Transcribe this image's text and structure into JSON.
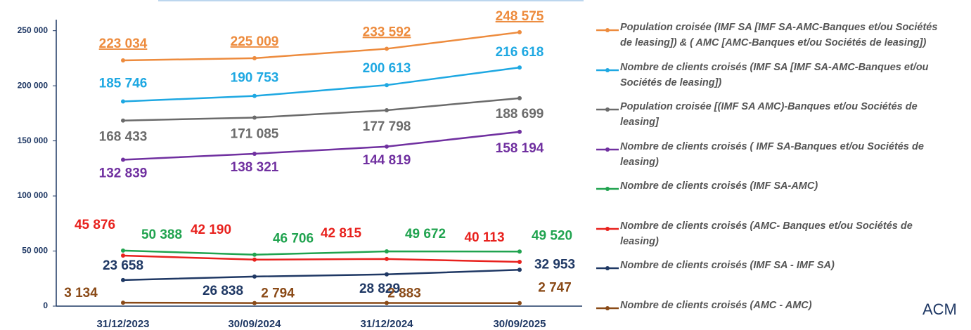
{
  "chart_data": {
    "type": "line",
    "categories": [
      "31/12/2023",
      "30/09/2024",
      "31/12/2024",
      "30/09/2025"
    ],
    "ylim": [
      0,
      260000
    ],
    "yticks": [
      {
        "value": 0,
        "label": "0"
      },
      {
        "value": 50000,
        "label": "50 000"
      },
      {
        "value": 100000,
        "label": "100 000"
      },
      {
        "value": 150000,
        "label": "150 000"
      },
      {
        "value": 200000,
        "label": "200 000"
      },
      {
        "value": 250000,
        "label": "250 000"
      }
    ],
    "series": [
      {
        "name": "Population croisée (IMF SA [IMF SA-AMC-Banques et/ou Sociétés de leasing]) & ( AMC [AMC-Banques et/ou Sociétés de leasing])",
        "color": "#ed8b3d",
        "values": [
          223034,
          225009,
          233592,
          248575
        ],
        "value_labels": [
          "223 034",
          "225 009",
          "233 592",
          "248 575"
        ]
      },
      {
        "name": "Nombre de clients croisés  (IMF SA [IMF SA-AMC-Banques et/ou Sociétés de leasing])",
        "color": "#1ea8e2",
        "values": [
          185746,
          190753,
          200613,
          216618
        ],
        "value_labels": [
          "185 746",
          "190 753",
          "200 613",
          "216 618"
        ]
      },
      {
        "name": "Population croisée  [(IMF SA AMC)-Banques et/ou Sociétés de leasing]",
        "color": "#6b6b6b",
        "values": [
          168433,
          171085,
          177798,
          188699
        ],
        "value_labels": [
          "168 433",
          "171 085",
          "177 798",
          "188 699"
        ]
      },
      {
        "name": "Nombre de clients croisés  ( IMF SA-Banques et/ou Sociétés de leasing)",
        "color": "#7030a0",
        "values": [
          132839,
          138321,
          144819,
          158194
        ],
        "value_labels": [
          "132 839",
          "138 321",
          "144 819",
          "158 194"
        ]
      },
      {
        "name": "Nombre de clients croisés (IMF SA-AMC)",
        "color": "#20a34f",
        "values": [
          50388,
          46706,
          49672,
          49520
        ],
        "value_labels": [
          "50 388",
          "46 706",
          "49 672",
          "49 520"
        ]
      },
      {
        "name": "Nombre de clients croisés (AMC- Banques et/ou Sociétés de leasing)",
        "color": "#e8211d",
        "values": [
          45876,
          42190,
          42815,
          40113
        ],
        "value_labels": [
          "45 876",
          "42 190",
          "42 815",
          "40 113"
        ]
      },
      {
        "name": "Nombre de clients croisés (IMF SA - IMF SA)",
        "color": "#1f3864",
        "values": [
          23658,
          26838,
          28829,
          32953
        ],
        "value_labels": [
          "23 658",
          "26 838",
          "28 829",
          "32 953"
        ]
      },
      {
        "name": "Nombre de clients croisés (AMC - AMC)",
        "color": "#8a4a17",
        "values": [
          3134,
          2794,
          2883,
          2747
        ],
        "value_labels": [
          "3 134",
          "2 794",
          "2 883",
          "2 747"
        ]
      }
    ],
    "logo": "ACM"
  }
}
